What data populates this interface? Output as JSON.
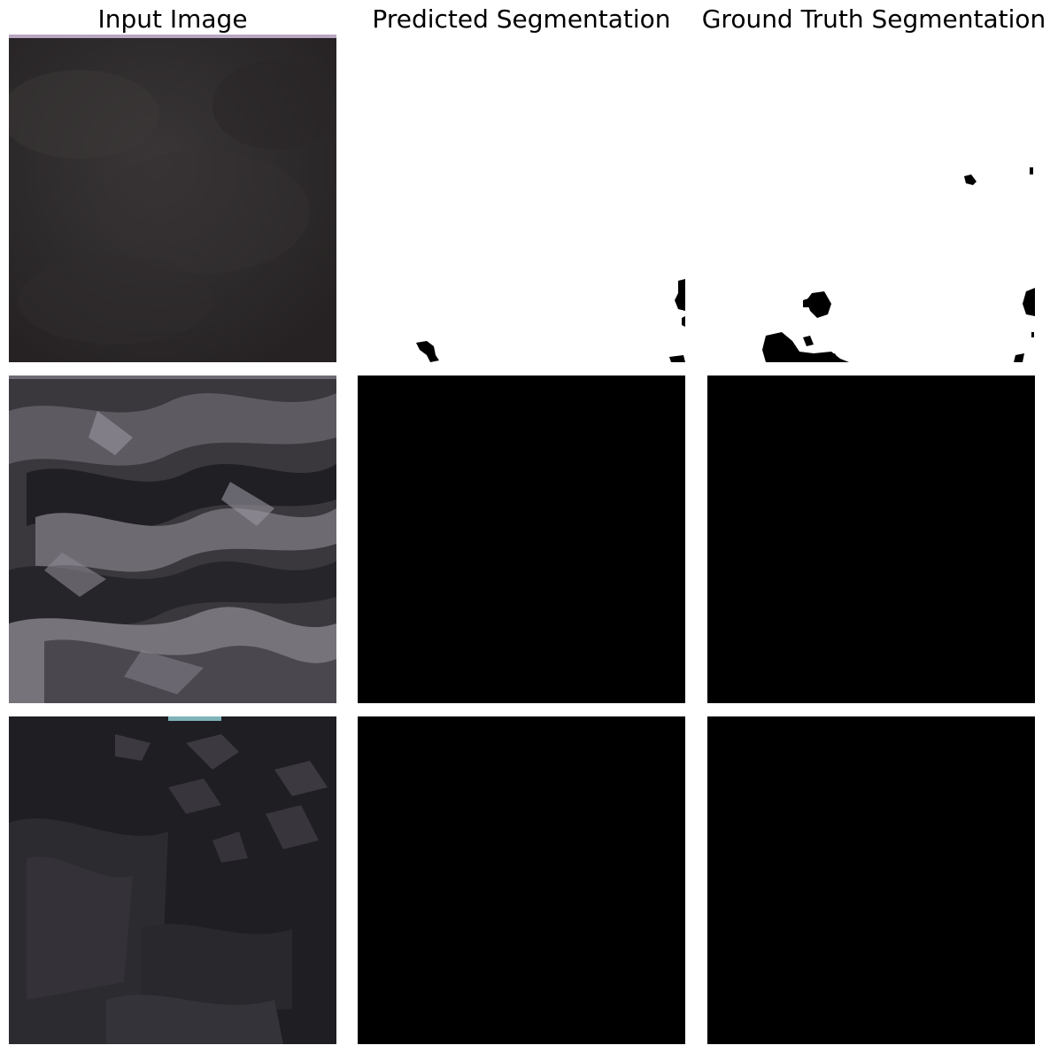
{
  "titles": {
    "input": "Input Image",
    "predicted": "Predicted Segmentation",
    "ground_truth": "Ground Truth Segmentation"
  },
  "colors": {
    "background": "#ffffff",
    "mask_foreground": "#000000",
    "mask_background": "#ffffff"
  },
  "rows": [
    {
      "input_desc": "dark-cloudy-satellite-tile",
      "predicted_mask": "mostly-white-with-small-black-blobs",
      "ground_truth_mask": "mostly-white-with-black-blobs-bottom-left"
    },
    {
      "input_desc": "snowy-mountain-ridges-satellite-tile",
      "predicted_mask": "all-black",
      "ground_truth_mask": "all-black"
    },
    {
      "input_desc": "dark-rugged-terrain-satellite-tile",
      "predicted_mask": "all-black",
      "ground_truth_mask": "all-black"
    }
  ]
}
